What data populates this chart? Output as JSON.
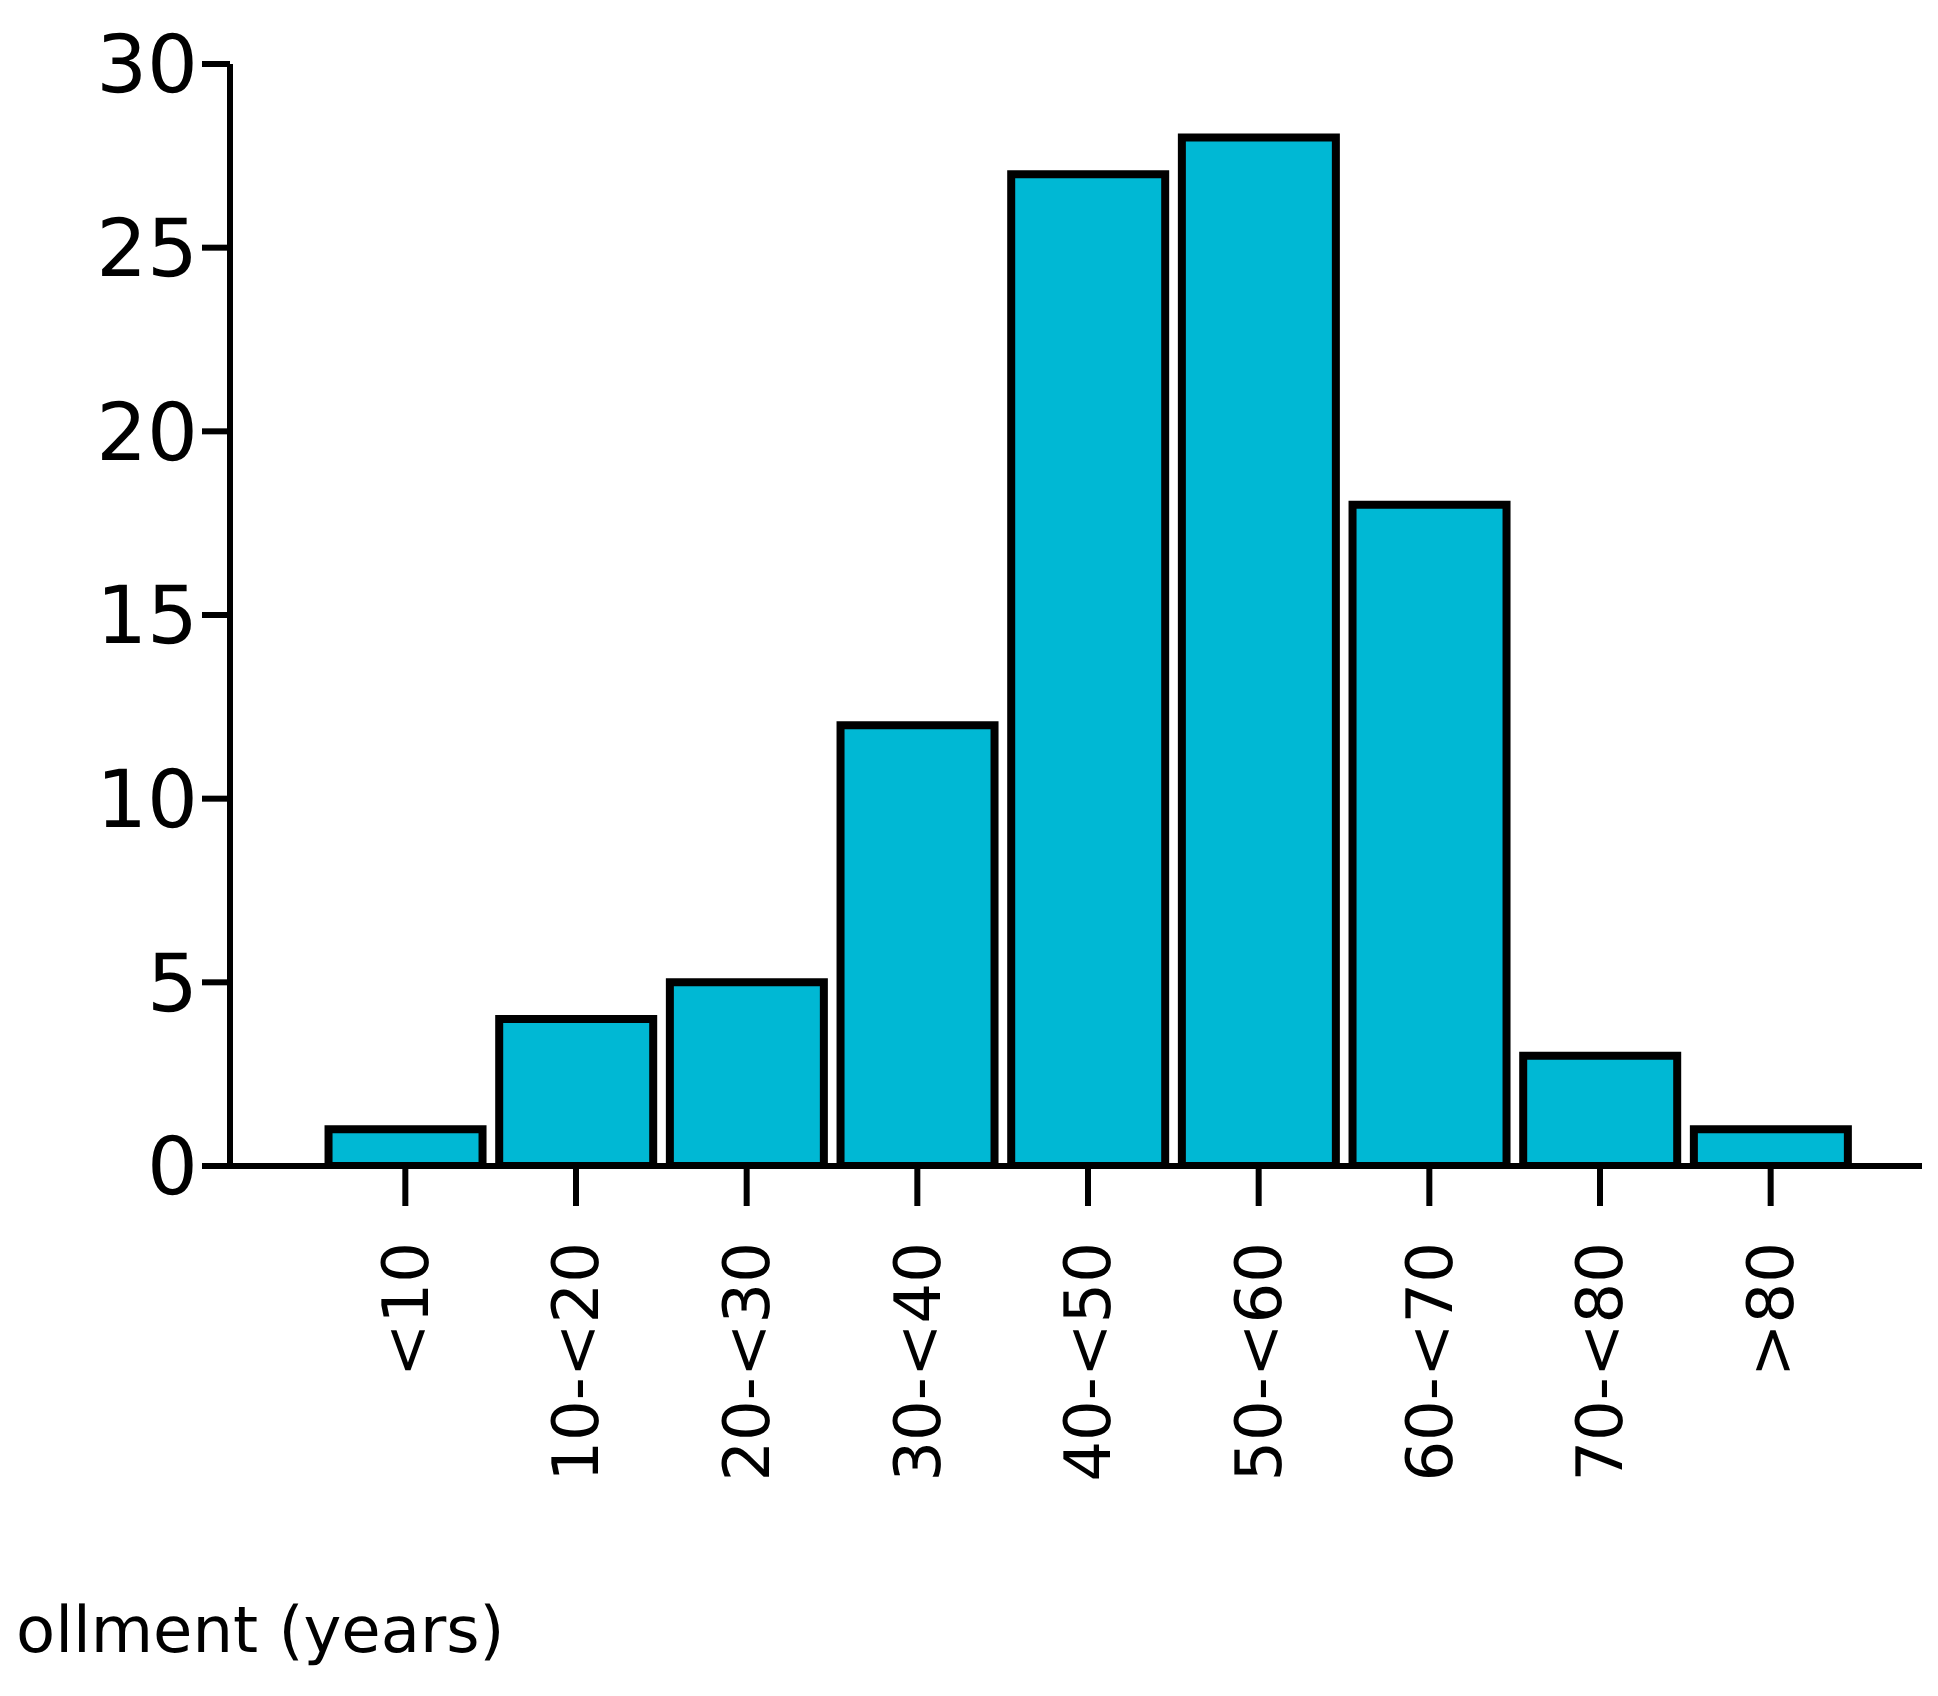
{
  "chart_data": {
    "type": "bar",
    "xlabel": "ollment (years)",
    "categories": [
      "<10",
      "10-<20",
      "20-<30",
      "30-<40",
      "40-<50",
      "50-<60",
      "60-<70",
      "70-<80",
      ">80"
    ],
    "values": [
      1,
      4,
      5,
      12,
      27,
      28,
      18,
      3,
      1
    ],
    "color": "#00b8d4",
    "ylim": [
      0,
      30
    ],
    "yticks": [
      0,
      5,
      10,
      15,
      20,
      25,
      30
    ],
    "grid": false,
    "legend": false
  }
}
